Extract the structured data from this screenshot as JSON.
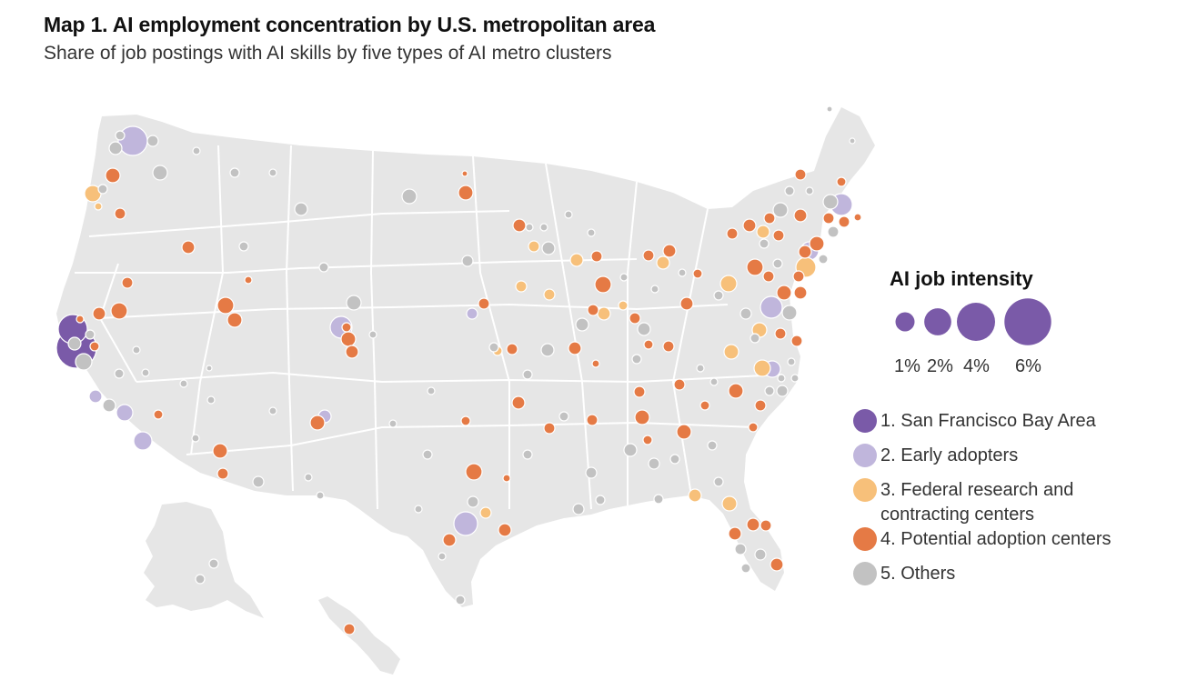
{
  "title": "Map 1. AI employment concentration by U.S. metropolitan area",
  "subtitle": "Share of job postings with AI skills by five types of AI metro clusters",
  "size_legend": {
    "title": "AI job intensity",
    "items": [
      {
        "label": "1%",
        "value": 1
      },
      {
        "label": "2%",
        "value": 2
      },
      {
        "label": "4%",
        "value": 4
      },
      {
        "label": "6%",
        "value": 6
      }
    ]
  },
  "category_legend": [
    {
      "id": 1,
      "label": "1. San Francisco Bay Area",
      "color": "#7a5aa8"
    },
    {
      "id": 2,
      "label": "2. Early adopters",
      "color": "#c0b6dc"
    },
    {
      "id": 3,
      "label": "3. Federal research and contracting centers",
      "color": "#f7c07a"
    },
    {
      "id": 4,
      "label": "4. Potential adoption centers",
      "color": "#e57a45"
    },
    {
      "id": 5,
      "label": "5. Others",
      "color": "#c2c2c2"
    }
  ],
  "colors": {
    "land": "#e6e6e6",
    "border": "#ffffff"
  }
}
